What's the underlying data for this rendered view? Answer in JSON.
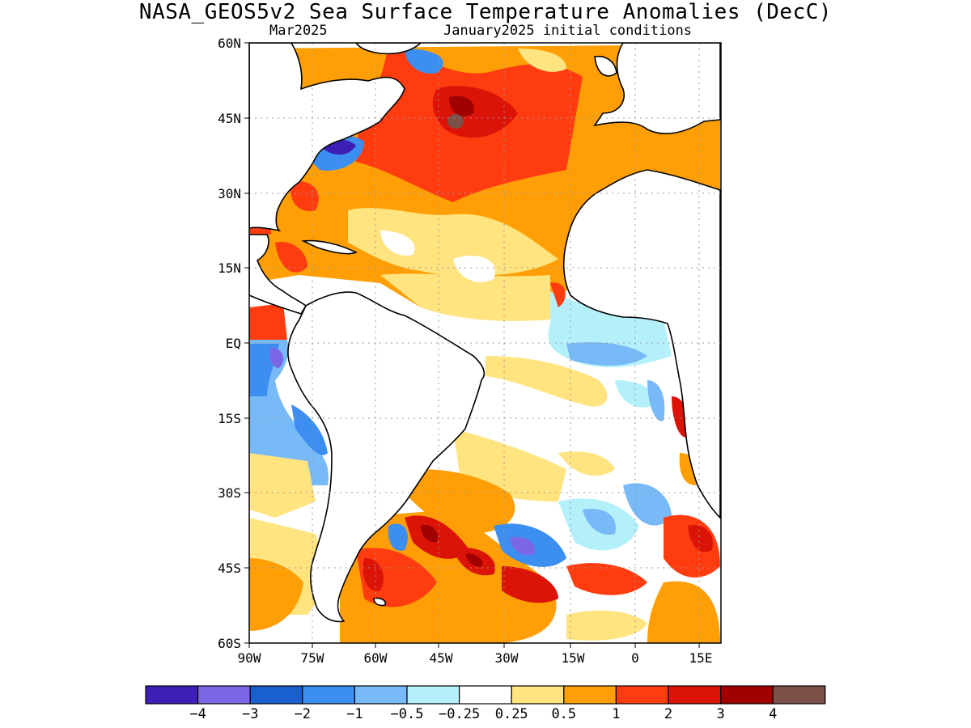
{
  "title": "NASA_GEOS5v2 Sea Surface Temperature Anomalies (DecC)",
  "subtitle_left": "Mar2025",
  "subtitle_right": "January2025 initial conditions",
  "lat_labels": [
    "60N",
    "45N",
    "30N",
    "15N",
    "EQ",
    "15S",
    "30S",
    "45S",
    "60S"
  ],
  "lon_labels": [
    "90W",
    "75W",
    "60W",
    "45W",
    "30W",
    "15W",
    "0",
    "15E"
  ],
  "colorbar": {
    "colors": [
      "#3c1fb4",
      "#7b66e6",
      "#1a5fd0",
      "#3c8ff0",
      "#78b9f8",
      "#b4f0fa",
      "#ffffff",
      "#ffe47f",
      "#ff9f05",
      "#ff3c10",
      "#dc1408",
      "#a00000",
      "#7b5046"
    ],
    "labels": [
      "−4",
      "−3",
      "−2",
      "−1",
      "−0.5",
      "−0.25",
      "0.25",
      "0.5",
      "1",
      "2",
      "3",
      "4"
    ]
  },
  "colors": {
    "land": "#ffffff",
    "coast": "#000000",
    "grid": "#999999"
  }
}
